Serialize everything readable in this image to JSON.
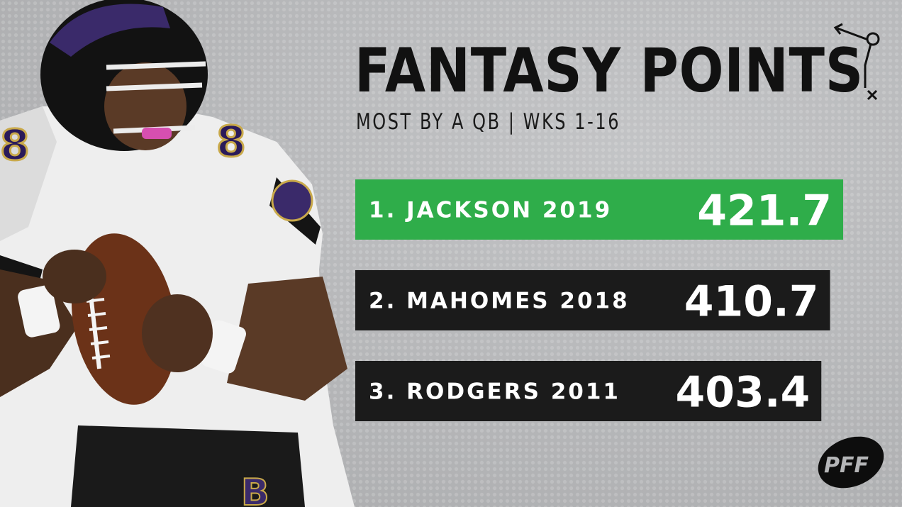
{
  "colors": {
    "highlight": "#2fad4a",
    "bar": "#1b1b1b",
    "text": "#111111"
  },
  "header": {
    "title": "FANTASY POINTS",
    "subtitle": "MOST BY A QB | WKS 1-16"
  },
  "icons": {
    "play_diagram": "play-diagram-icon",
    "logo": "pff-logo"
  },
  "logo_text": "PFF",
  "chart_data": {
    "type": "bar",
    "orientation": "horizontal",
    "title": "FANTASY POINTS",
    "subtitle": "MOST BY A QB | WKS 1-16",
    "xlim": [
      0,
      421.7
    ],
    "categories": [
      "1. JACKSON 2019",
      "2. MAHOMES 2018",
      "3. RODGERS 2011"
    ],
    "values": [
      421.7,
      410.7,
      403.4
    ],
    "value_labels": [
      "421.7",
      "410.7",
      "403.4"
    ],
    "highlight_index": 0,
    "grid": false,
    "legend": "none"
  }
}
